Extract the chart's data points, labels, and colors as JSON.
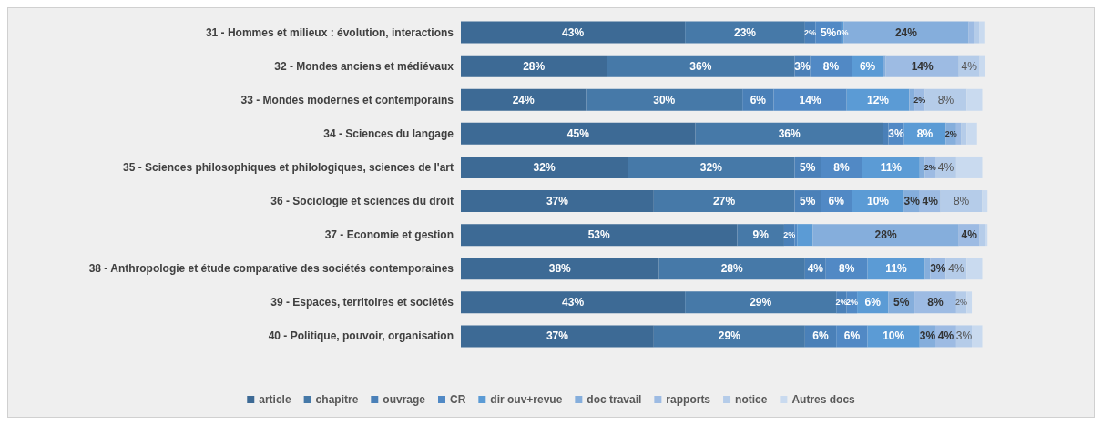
{
  "chart_data": {
    "type": "bar",
    "orientation": "horizontal",
    "stacked": true,
    "legend": "bottom",
    "tick_labels": "y",
    "categories": [
      "31 - Hommes et milieux : évolution, interactions",
      "32 - Mondes anciens et médiévaux",
      "33 - Mondes modernes et contemporains",
      "34 - Sciences du langage",
      "35 - Sciences philosophiques et philologiques, sciences de l'art",
      "36 - Sociologie et sciences du droit",
      "37 - Economie et gestion",
      "38 - Anthropologie et étude comparative des sociétés contemporaines",
      "39 - Espaces, territoires et sociétés",
      "40 - Politique, pouvoir, organisation"
    ],
    "series": [
      {
        "name": "article",
        "color": "#3d6a95",
        "values": [
          43,
          28,
          24,
          45,
          32,
          37,
          53,
          38,
          43,
          37
        ],
        "value_labels": [
          "43%",
          "28%",
          "24%",
          "45%",
          "32%",
          "37%",
          "53%",
          "38%",
          "43%",
          "37%"
        ]
      },
      {
        "name": "chapitre",
        "color": "#4679a8",
        "values": [
          23,
          36,
          30,
          36,
          32,
          27,
          9,
          28,
          29,
          29
        ],
        "value_labels": [
          "23%",
          "36%",
          "30%",
          "36%",
          "32%",
          "27%",
          "9%",
          "28%",
          "29%",
          "29%"
        ]
      },
      {
        "name": "ouvrage",
        "color": "#4a80b8",
        "values": [
          2,
          3,
          6,
          1,
          5,
          5,
          2,
          4,
          2,
          6
        ],
        "value_labels": [
          "2%",
          "3%",
          "6%",
          null,
          "5%",
          "5%",
          "2%",
          "4%",
          "2%",
          "6%"
        ]
      },
      {
        "name": "CR",
        "color": "#5189c5",
        "values": [
          5,
          8,
          14,
          3,
          8,
          6,
          0.5,
          8,
          2,
          6
        ],
        "value_labels": [
          "5%",
          "8%",
          "14%",
          "3%",
          "8%",
          "6%",
          null,
          "8%",
          "2%",
          "6%"
        ]
      },
      {
        "name": "dir ouv+revue",
        "color": "#5b9bd5",
        "values": [
          0.4,
          6,
          12,
          8,
          11,
          10,
          3,
          11,
          6,
          10
        ],
        "value_labels": [
          "0%",
          "6%",
          "12%",
          "8%",
          "11%",
          "10%",
          null,
          "11%",
          "6%",
          "10%"
        ]
      },
      {
        "name": "doc travail",
        "color": "#85aedc",
        "values": [
          24,
          0.5,
          1,
          2,
          1,
          3,
          28,
          1,
          5,
          3
        ],
        "value_labels": [
          "24%",
          null,
          null,
          "2%",
          null,
          "3%",
          "28%",
          null,
          "5%",
          "3%"
        ]
      },
      {
        "name": "rapports",
        "color": "#9dbbe3",
        "values": [
          1,
          14,
          2,
          1,
          2,
          4,
          4,
          3,
          8,
          4
        ],
        "value_labels": [
          null,
          "14%",
          "2%",
          null,
          "2%",
          "4%",
          "4%",
          "3%",
          "8%",
          "4%"
        ]
      },
      {
        "name": "notice",
        "color": "#b5cce9",
        "values": [
          1,
          4,
          8,
          1,
          4,
          8,
          1,
          4,
          2,
          3
        ],
        "value_labels": [
          null,
          "4%",
          "8%",
          null,
          "4%",
          "8%",
          null,
          "4%",
          "2%",
          "3%"
        ]
      },
      {
        "name": "Autres docs",
        "color": "#c9daef",
        "values": [
          1,
          1,
          3,
          2,
          5,
          1,
          0.5,
          3,
          1,
          2
        ],
        "value_labels": [
          null,
          null,
          null,
          null,
          null,
          null,
          null,
          null,
          null,
          null
        ]
      }
    ]
  }
}
